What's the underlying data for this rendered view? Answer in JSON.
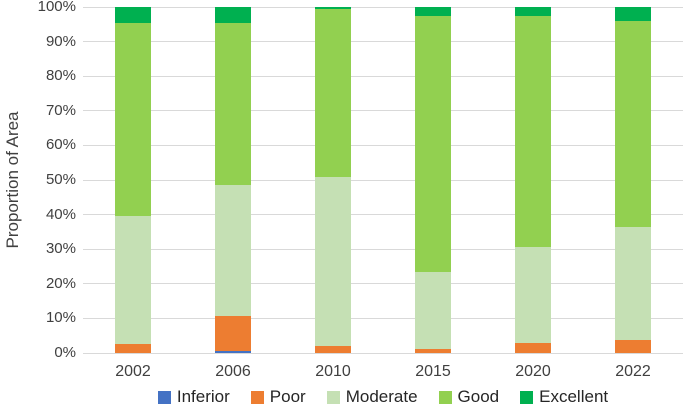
{
  "chart_data": {
    "type": "bar",
    "stacked": true,
    "orientation": "vertical",
    "title": "",
    "xlabel": "",
    "ylabel": "Proportion of Area",
    "units": "percent",
    "ylim": [
      0,
      100
    ],
    "grid": true,
    "grid_color": "#D9D9D9",
    "text_color": "#404040",
    "legend_position": "bottom",
    "categories": [
      "2002",
      "2006",
      "2010",
      "2015",
      "2020",
      "2022"
    ],
    "series": [
      {
        "name": "Inferior",
        "color": "#4472C4",
        "values": [
          0,
          0.6,
          0,
          0,
          0,
          0
        ]
      },
      {
        "name": "Poor",
        "color": "#ED7D31",
        "values": [
          2.7,
          10.1,
          2.1,
          1.1,
          3.0,
          3.9
        ]
      },
      {
        "name": "Moderate",
        "color": "#C5E0B4",
        "values": [
          36.8,
          37.9,
          48.9,
          22.4,
          27.6,
          32.4
        ]
      },
      {
        "name": "Good",
        "color": "#92D050",
        "values": [
          55.8,
          46.7,
          48.4,
          73.9,
          66.9,
          59.8
        ]
      },
      {
        "name": "Excellent",
        "color": "#00B050",
        "values": [
          4.7,
          4.7,
          0.6,
          2.6,
          2.5,
          3.9
        ]
      }
    ],
    "y_ticks": [
      {
        "value": 0,
        "label": "0%"
      },
      {
        "value": 10,
        "label": "10%"
      },
      {
        "value": 20,
        "label": "20%"
      },
      {
        "value": 30,
        "label": "30%"
      },
      {
        "value": 40,
        "label": "40%"
      },
      {
        "value": 50,
        "label": "50%"
      },
      {
        "value": 60,
        "label": "60%"
      },
      {
        "value": 70,
        "label": "70%"
      },
      {
        "value": 80,
        "label": "80%"
      },
      {
        "value": 90,
        "label": "90%"
      },
      {
        "value": 100,
        "label": "100%"
      }
    ]
  }
}
